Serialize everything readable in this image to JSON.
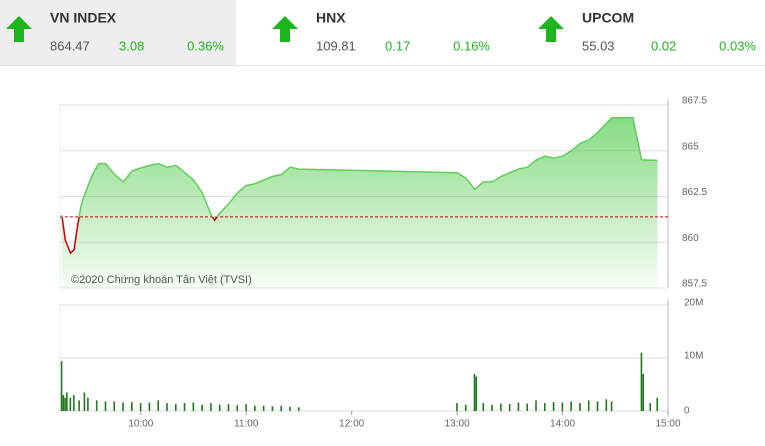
{
  "header": {
    "indices": [
      {
        "name": "VN INDEX",
        "value": 864.47,
        "change": 3.08,
        "percent": "0.36%"
      },
      {
        "name": "HNX",
        "value": 109.81,
        "change": 0.17,
        "percent": "0.16%"
      },
      {
        "name": "UPCOM",
        "value": 55.03,
        "change": 0.02,
        "percent": "0.03%"
      }
    ]
  },
  "chart_data": [
    {
      "type": "line",
      "annotation": "©2020 Chứng khoán Tân Việt (TVSI)",
      "color": "#5fcf5a",
      "below_color": "#cc0000",
      "reference": 861.39,
      "x": [
        "09:15",
        "09:17",
        "09:20",
        "09:22",
        "09:24",
        "09:26",
        "09:28",
        "09:30",
        "09:33",
        "09:36",
        "09:40",
        "09:45",
        "09:50",
        "09:55",
        "10:00",
        "10:05",
        "10:10",
        "10:15",
        "10:20",
        "10:25",
        "10:30",
        "10:35",
        "10:40",
        "10:42",
        "10:45",
        "10:50",
        "10:55",
        "11:00",
        "11:05",
        "11:10",
        "11:15",
        "11:20",
        "11:25",
        "11:30",
        "13:00",
        "13:05",
        "13:10",
        "13:15",
        "13:20",
        "13:25",
        "13:30",
        "13:35",
        "13:40",
        "13:45",
        "13:50",
        "13:55",
        "14:00",
        "14:05",
        "14:10",
        "14:15",
        "14:20",
        "14:25",
        "14:28",
        "14:30",
        "14:35",
        "14:40",
        "14:45",
        "14:54"
      ],
      "values": [
        861.49,
        860.12,
        859.4,
        859.6,
        860.9,
        862.0,
        862.6,
        863.1,
        863.8,
        864.3,
        864.3,
        863.7,
        863.3,
        863.9,
        864.06,
        864.2,
        864.3,
        864.1,
        864.2,
        863.8,
        863.4,
        862.7,
        861.5,
        861.2,
        861.6,
        862.1,
        862.7,
        863.1,
        863.2,
        863.4,
        863.6,
        863.7,
        864.1,
        864.0,
        863.8,
        863.5,
        862.9,
        863.3,
        863.3,
        863.6,
        863.8,
        864.0,
        864.1,
        864.5,
        864.7,
        864.6,
        864.7,
        865.0,
        865.4,
        865.6,
        866.0,
        866.5,
        866.8,
        866.8,
        866.8,
        866.8,
        864.5,
        864.47
      ],
      "xlim": [
        "09:14",
        "15:00"
      ],
      "ylim": [
        857.5,
        867.5
      ],
      "yticks": [
        857.5,
        860,
        862.5,
        865,
        867.5
      ],
      "grid": true
    },
    {
      "type": "bar",
      "color": "#1f7a1f",
      "x": [
        "09:15",
        "09:16",
        "09:17",
        "09:18",
        "09:20",
        "09:22",
        "09:25",
        "09:28",
        "09:30",
        "09:35",
        "09:40",
        "09:45",
        "09:50",
        "09:55",
        "10:00",
        "10:05",
        "10:10",
        "10:15",
        "10:20",
        "10:25",
        "10:30",
        "10:35",
        "10:40",
        "10:45",
        "10:50",
        "10:55",
        "11:00",
        "11:05",
        "11:10",
        "11:15",
        "11:20",
        "11:25",
        "11:30",
        "13:00",
        "13:05",
        "13:10",
        "13:11",
        "13:15",
        "13:20",
        "13:25",
        "13:30",
        "13:35",
        "13:40",
        "13:45",
        "13:50",
        "13:55",
        "14:00",
        "14:05",
        "14:10",
        "14:15",
        "14:20",
        "14:25",
        "14:28",
        "14:45",
        "14:46",
        "14:50",
        "14:54"
      ],
      "values": [
        9400000,
        3000000,
        2500000,
        3500000,
        2500000,
        3000000,
        2000000,
        3500000,
        2500000,
        2000000,
        1800000,
        1800000,
        1600000,
        1700000,
        1500000,
        1600000,
        2000000,
        1500000,
        1300000,
        1500000,
        1600000,
        1200000,
        1500000,
        1200000,
        1300000,
        1100000,
        1300000,
        1000000,
        1000000,
        900000,
        1000000,
        800000,
        700000,
        1500000,
        1200000,
        7000000,
        6500000,
        1500000,
        1200000,
        1400000,
        1300000,
        1600000,
        1400000,
        2000000,
        1500000,
        1700000,
        1600000,
        1800000,
        1500000,
        2000000,
        1800000,
        2200000,
        1800000,
        11000000,
        7000000,
        1500000,
        2500000
      ],
      "xlim": [
        "09:14",
        "15:00"
      ],
      "xticks": [
        "10:00",
        "11:00",
        "12:00",
        "13:00",
        "14:00",
        "15:00"
      ],
      "ylim": [
        0,
        20000000
      ],
      "yticks": [
        {
          "value": 0,
          "label": "0"
        },
        {
          "value": 10000000,
          "label": "10M"
        },
        {
          "value": 20000000,
          "label": "20M"
        }
      ],
      "grid": true
    }
  ]
}
